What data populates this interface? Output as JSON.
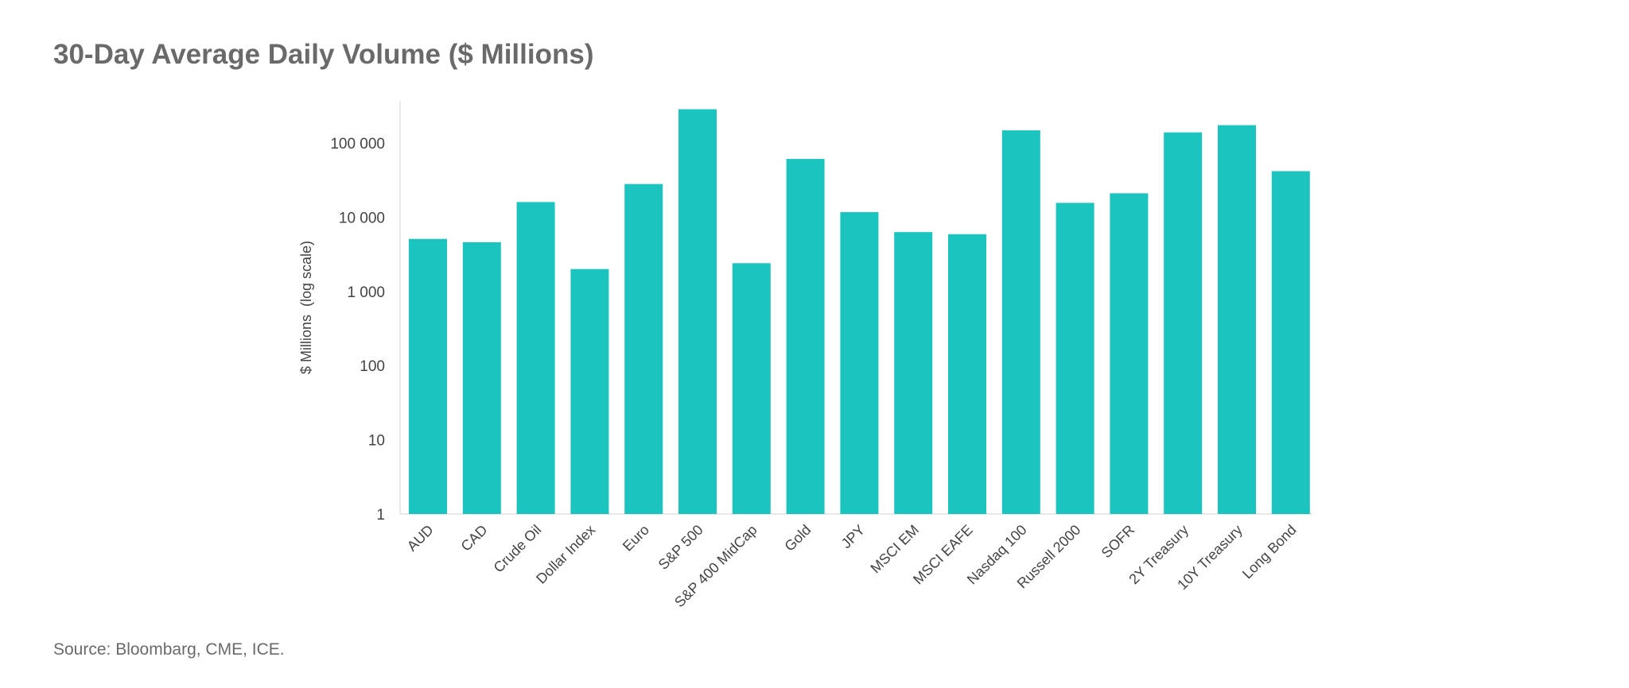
{
  "chart_data": {
    "type": "bar",
    "title": "30-Day Average Daily Volume ($ Millions)",
    "xlabel": "",
    "ylabel": "$ Millions  (log scale)",
    "yscale": "log",
    "ylim": [
      1,
      300000
    ],
    "yticks": [
      1,
      10,
      100,
      1000,
      10000,
      100000
    ],
    "ytick_labels": [
      "1",
      "10",
      "100",
      "1 000",
      "10 000",
      "100 000"
    ],
    "grid": false,
    "categories": [
      "AUD",
      "CAD",
      "Crude Oil",
      "Dollar Index",
      "Euro",
      "S&P 500",
      "S&P 400 MidCap",
      "Gold",
      "JPY",
      "MSCI EM",
      "MSCI EAFE",
      "Nasdaq 100",
      "Russell 2000",
      "SOFR",
      "2Y Treasury",
      "10Y Treasury",
      "Long Bond"
    ],
    "values": [
      5100,
      4600,
      16000,
      2000,
      28000,
      285000,
      2400,
      61000,
      11700,
      6300,
      5900,
      148000,
      15600,
      21000,
      139000,
      174000,
      41700
    ],
    "bar_color": "#1cc4bf",
    "source": "Source: Bloombarg, CME, ICE."
  }
}
